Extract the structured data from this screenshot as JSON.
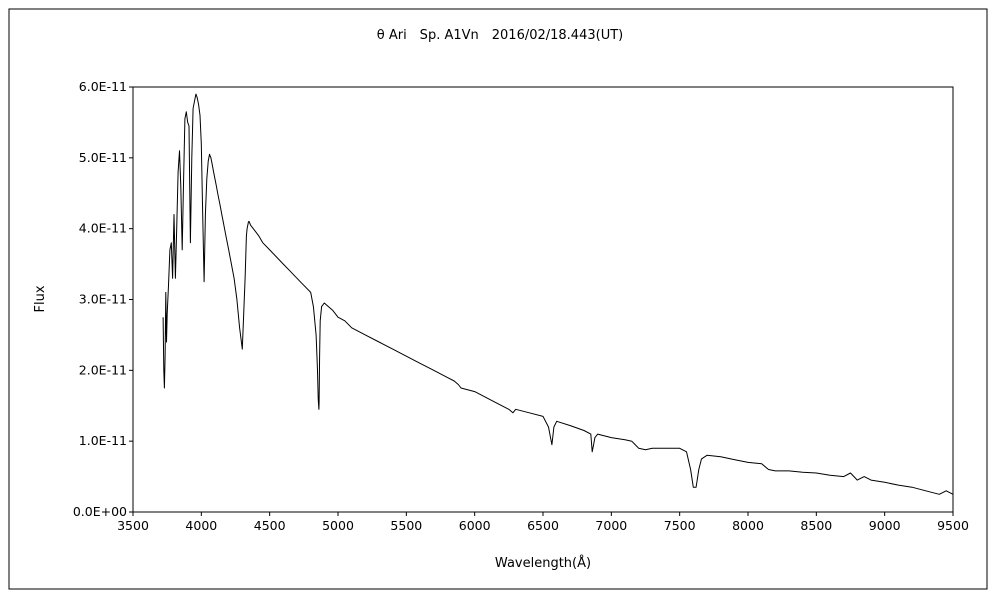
{
  "chart_data": {
    "type": "line",
    "title": "θ Ari　Sp. A1Vn　2016/02/18.443(UT)",
    "xlabel": "Wavelength(Å)",
    "ylabel": "Flux",
    "xlim": [
      3500,
      9500
    ],
    "ylim": [
      0,
      6e-11
    ],
    "grid": false,
    "x_ticks": [
      3500,
      4000,
      4500,
      5000,
      5500,
      6000,
      6500,
      7000,
      7500,
      8000,
      8500,
      9000,
      9500
    ],
    "x_tick_labels": [
      "3500",
      "4000",
      "4500",
      "5000",
      "5500",
      "6000",
      "6500",
      "7000",
      "7500",
      "8000",
      "8500",
      "9000",
      "9500"
    ],
    "y_ticks": [
      0,
      1e-11,
      2e-11,
      3e-11,
      4e-11,
      5e-11,
      6e-11
    ],
    "y_tick_labels": [
      "0.0E+00",
      "1.0E-11",
      "2.0E-11",
      "3.0E-11",
      "4.0E-11",
      "5.0E-11",
      "6.0E-11"
    ],
    "series": [
      {
        "color": "#000000",
        "x": [
          3720,
          3725,
          3730,
          3735,
          3740,
          3745,
          3750,
          3760,
          3770,
          3780,
          3790,
          3800,
          3810,
          3820,
          3830,
          3840,
          3850,
          3860,
          3870,
          3880,
          3890,
          3900,
          3910,
          3920,
          3930,
          3940,
          3950,
          3960,
          3970,
          3975,
          3980,
          3990,
          4000,
          4010,
          4020,
          4030,
          4040,
          4050,
          4060,
          4070,
          4080,
          4090,
          4095,
          4100,
          4105,
          4110,
          4120,
          4130,
          4140,
          4150,
          4160,
          4180,
          4200,
          4220,
          4240,
          4260,
          4280,
          4300,
          4320,
          4330,
          4335,
          4340,
          4345,
          4350,
          4360,
          4380,
          4400,
          4420,
          4450,
          4500,
          4550,
          4600,
          4650,
          4700,
          4750,
          4800,
          4820,
          4840,
          4850,
          4855,
          4860,
          4862,
          4865,
          4870,
          4880,
          4900,
          4930,
          4960,
          5000,
          5050,
          5100,
          5200,
          5300,
          5400,
          5500,
          5600,
          5700,
          5800,
          5850,
          5880,
          5900,
          6000,
          6100,
          6200,
          6250,
          6280,
          6300,
          6400,
          6500,
          6540,
          6560,
          6565,
          6580,
          6600,
          6700,
          6800,
          6850,
          6860,
          6870,
          6880,
          6900,
          7000,
          7100,
          7150,
          7200,
          7250,
          7300,
          7400,
          7500,
          7550,
          7580,
          7600,
          7620,
          7640,
          7660,
          7700,
          7800,
          7900,
          8000,
          8100,
          8150,
          8200,
          8300,
          8400,
          8500,
          8600,
          8700,
          8750,
          8800,
          8850,
          8900,
          9000,
          9100,
          9200,
          9300,
          9400,
          9450,
          9500
        ],
        "values": [
          2.75e-11,
          2e-11,
          1.75e-11,
          2.2e-11,
          3.1e-11,
          2.4e-11,
          2.8e-11,
          3.2e-11,
          3.7e-11,
          3.8e-11,
          3.3e-11,
          4.2e-11,
          3.3e-11,
          4e-11,
          4.8e-11,
          5.1e-11,
          4.6e-11,
          3.7e-11,
          4.7e-11,
          5.55e-11,
          5.65e-11,
          5.5e-11,
          5.45e-11,
          3.8e-11,
          5e-11,
          5.7e-11,
          5.8e-11,
          5.9e-11,
          5.85e-11,
          5.8e-11,
          5.75e-11,
          5.6e-11,
          5.2e-11,
          4.2e-11,
          3.25e-11,
          4.2e-11,
          4.7e-11,
          4.95e-11,
          5.05e-11,
          5e-11,
          4.9e-11,
          4.8e-11,
          4.75e-11,
          4.7e-11,
          4.65e-11,
          4.6e-11,
          4.5e-11,
          4.4e-11,
          4.3e-11,
          4.2e-11,
          4.1e-11,
          3.9e-11,
          3.7e-11,
          3.5e-11,
          3.3e-11,
          3e-11,
          2.6e-11,
          2.3e-11,
          3.3e-11,
          3.9e-11,
          4e-11,
          4.05e-11,
          4.1e-11,
          4.1e-11,
          4.05e-11,
          4e-11,
          3.95e-11,
          3.9e-11,
          3.8e-11,
          3.7e-11,
          3.6e-11,
          3.5e-11,
          3.4e-11,
          3.3e-11,
          3.2e-11,
          3.1e-11,
          2.9e-11,
          2.5e-11,
          2e-11,
          1.6e-11,
          1.45e-11,
          1.55e-11,
          2.2e-11,
          2.7e-11,
          2.9e-11,
          2.95e-11,
          2.9e-11,
          2.85e-11,
          2.75e-11,
          2.7e-11,
          2.6e-11,
          2.5e-11,
          2.4e-11,
          2.3e-11,
          2.2e-11,
          2.1e-11,
          2e-11,
          1.9e-11,
          1.85e-11,
          1.8e-11,
          1.75e-11,
          1.7e-11,
          1.6e-11,
          1.5e-11,
          1.45e-11,
          1.4e-11,
          1.45e-11,
          1.4e-11,
          1.35e-11,
          1.2e-11,
          1e-11,
          9.5e-12,
          1.2e-11,
          1.28e-11,
          1.22e-11,
          1.15e-11,
          1.1e-11,
          8.5e-12,
          9.5e-12,
          1.05e-11,
          1.1e-11,
          1.05e-11,
          1.02e-11,
          1e-11,
          9e-12,
          8.8e-12,
          9e-12,
          9e-12,
          9e-12,
          8.5e-12,
          6e-12,
          3.5e-12,
          3.5e-12,
          6e-12,
          7.5e-12,
          8e-12,
          7.8e-12,
          7.4e-12,
          7e-12,
          6.8e-12,
          6e-12,
          5.8e-12,
          5.8e-12,
          5.6e-12,
          5.5e-12,
          5.2e-12,
          5e-12,
          5.5e-12,
          4.5e-12,
          5e-12,
          4.5e-12,
          4.2e-12,
          3.8e-12,
          3.5e-12,
          3e-12,
          2.5e-12,
          3e-12,
          2.5e-12
        ]
      }
    ]
  }
}
